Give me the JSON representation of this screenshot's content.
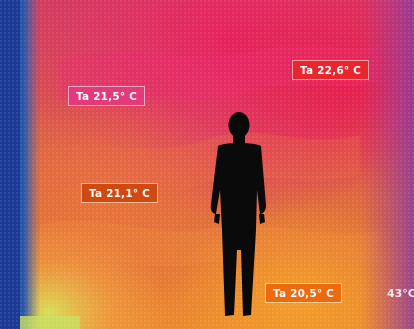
{
  "thermal_image": {
    "readings": [
      {
        "label": "Ta 21,5° C",
        "color": "#e23a7a"
      },
      {
        "label": "Ta 22,6° C",
        "color": "#e8262e"
      },
      {
        "label": "Ta 21,1° C",
        "color": "#cf4a12"
      },
      {
        "label": "Ta 20,5° C",
        "color": "#ec6a10"
      }
    ],
    "edge_reading": "43°C",
    "palette": {
      "cold_edge": "#1f3f9a",
      "warm_top": "#e8276e",
      "mid": "#e0683a",
      "bottom_warm": "#f09a30",
      "cool_corner": "#c8e060",
      "silhouette": "#0a0a0a"
    }
  }
}
